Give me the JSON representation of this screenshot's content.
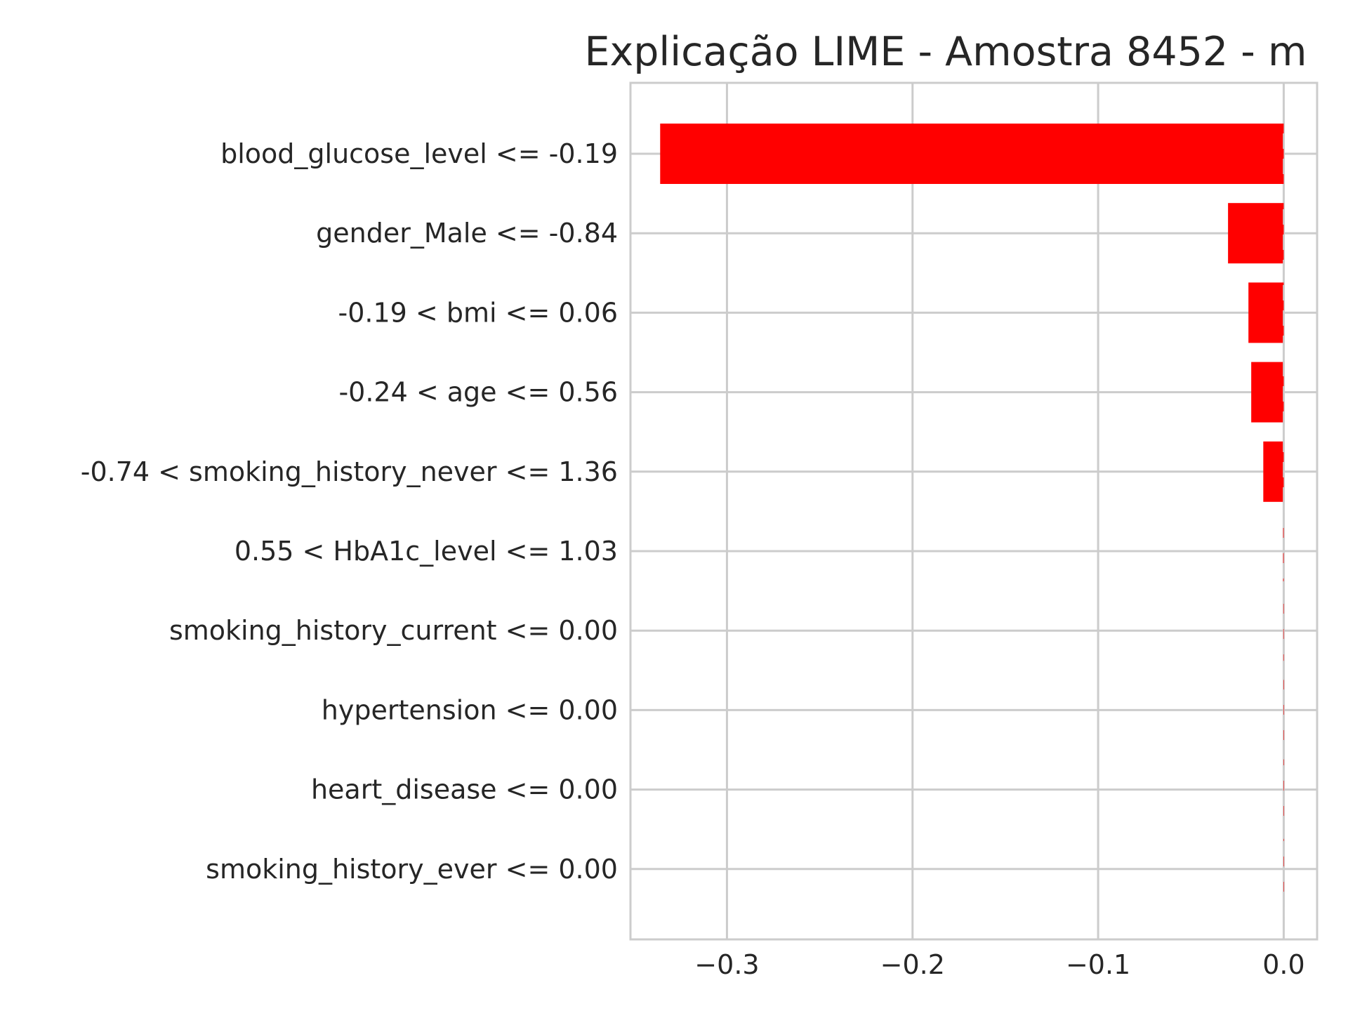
{
  "chart_data": {
    "type": "bar",
    "orientation": "horizontal",
    "title": "Explicação LIME - Amostra 8452 - m",
    "xlabel": "",
    "ylabel": "",
    "categories": [
      "blood_glucose_level <= -0.19",
      "gender_Male <= -0.84",
      "-0.19 < bmi <= 0.06",
      "-0.24 < age <= 0.56",
      "-0.74 < smoking_history_never <= 1.36",
      "0.55 < HbA1c_level <= 1.03",
      "smoking_history_current <= 0.00",
      "hypertension <= 0.00",
      "heart_disease <= 0.00",
      "smoking_history_ever <= 0.00"
    ],
    "values": [
      -0.336,
      -0.03,
      -0.019,
      -0.0175,
      -0.011,
      -0.0003,
      -0.0002,
      -0.0001,
      -0.0001,
      -0.0001
    ],
    "bar_color": "#ff0000",
    "xlim": [
      -0.352,
      0.018
    ],
    "xticks": [
      -0.3,
      -0.2,
      -0.1,
      0.0
    ],
    "xtick_labels": [
      "−0.3",
      "−0.2",
      "−0.1",
      "0.0"
    ],
    "grid": true
  }
}
